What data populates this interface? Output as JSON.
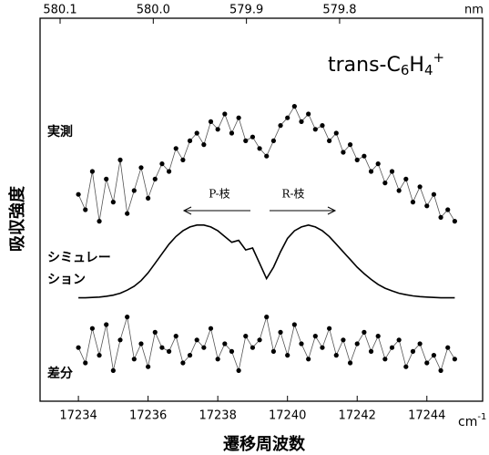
{
  "chart_data": {
    "type": "line",
    "xlabel": "遷移周波数",
    "ylabel": "吸収強度",
    "xunit": {
      "base": "cm",
      "sup": "-1"
    },
    "x2unit": "nm",
    "annotation": {
      "base": "trans-C",
      "sub1": "6",
      "mid": "H",
      "sub2": "4",
      "sup": "+"
    },
    "branch_labels": [
      "P-枝",
      "R-枝"
    ],
    "xlim": [
      17232.9,
      17245.6
    ],
    "xticks": [
      17234,
      17236,
      17238,
      17240,
      17242,
      17244
    ],
    "x2lim": [
      580.1215,
      579.6465
    ],
    "x2ticks": [
      580.1,
      {
        "value": 580.0,
        "label": "580.0"
      },
      579.9,
      579.8
    ],
    "ylim": [
      0,
      100
    ],
    "x": [
      17234.0,
      17234.2,
      17234.4,
      17234.6,
      17234.8,
      17235.0,
      17235.2,
      17235.4,
      17235.6,
      17235.8,
      17236.0,
      17236.2,
      17236.4,
      17236.6,
      17236.8,
      17237.0,
      17237.2,
      17237.4,
      17237.6,
      17237.8,
      17238.0,
      17238.2,
      17238.4,
      17238.6,
      17238.8,
      17239.0,
      17239.2,
      17239.4,
      17239.6,
      17239.8,
      17240.0,
      17240.2,
      17240.4,
      17240.6,
      17240.8,
      17241.0,
      17241.2,
      17241.4,
      17241.6,
      17241.8,
      17242.0,
      17242.2,
      17242.4,
      17242.6,
      17242.8,
      17243.0,
      17243.2,
      17243.4,
      17243.6,
      17243.8,
      17244.0,
      17244.2,
      17244.4,
      17244.6,
      17244.8
    ],
    "series": [
      {
        "name": "実測",
        "color": "#000000",
        "markers": true,
        "values": [
          54,
          50,
          60,
          47,
          58,
          52,
          63,
          49,
          55,
          61,
          53,
          58,
          62,
          60,
          66,
          63,
          68,
          70,
          67,
          73,
          71,
          75,
          70,
          74,
          68,
          69,
          66,
          64,
          68,
          72,
          74,
          77,
          73,
          75,
          71,
          72,
          68,
          70,
          65,
          67,
          63,
          64,
          60,
          62,
          57,
          60,
          55,
          58,
          52,
          56,
          51,
          54,
          48,
          50,
          47
        ]
      },
      {
        "name_lines": [
          "シミュレー",
          "ション"
        ],
        "color": "#000000",
        "markers": false,
        "values": [
          27,
          27,
          27.1,
          27.2,
          27.4,
          27.7,
          28.2,
          29,
          30,
          31.5,
          33.5,
          36,
          38.5,
          41,
          43,
          44.5,
          45.5,
          46,
          46,
          45.5,
          44.5,
          43,
          41.5,
          42,
          39.5,
          40,
          36,
          32,
          35,
          39,
          42.5,
          44.5,
          45.5,
          46,
          45.5,
          44.5,
          43,
          41,
          39,
          37,
          35,
          33.3,
          31.8,
          30.5,
          29.5,
          28.8,
          28.2,
          27.8,
          27.5,
          27.3,
          27.2,
          27.1,
          27,
          27,
          27
        ]
      },
      {
        "name": "差分",
        "color": "#000000",
        "markers": true,
        "values": [
          14,
          10,
          19,
          12,
          20,
          8,
          16,
          22,
          11,
          15,
          9,
          18,
          14,
          13,
          17,
          10,
          12,
          16,
          14,
          19,
          11,
          15,
          13,
          8,
          17,
          14,
          16,
          22,
          13,
          18,
          12,
          20,
          15,
          11,
          17,
          14,
          19,
          12,
          16,
          10,
          15,
          18,
          13,
          17,
          11,
          14,
          16,
          9,
          13,
          15,
          10,
          12,
          8,
          14,
          11
        ]
      }
    ]
  }
}
